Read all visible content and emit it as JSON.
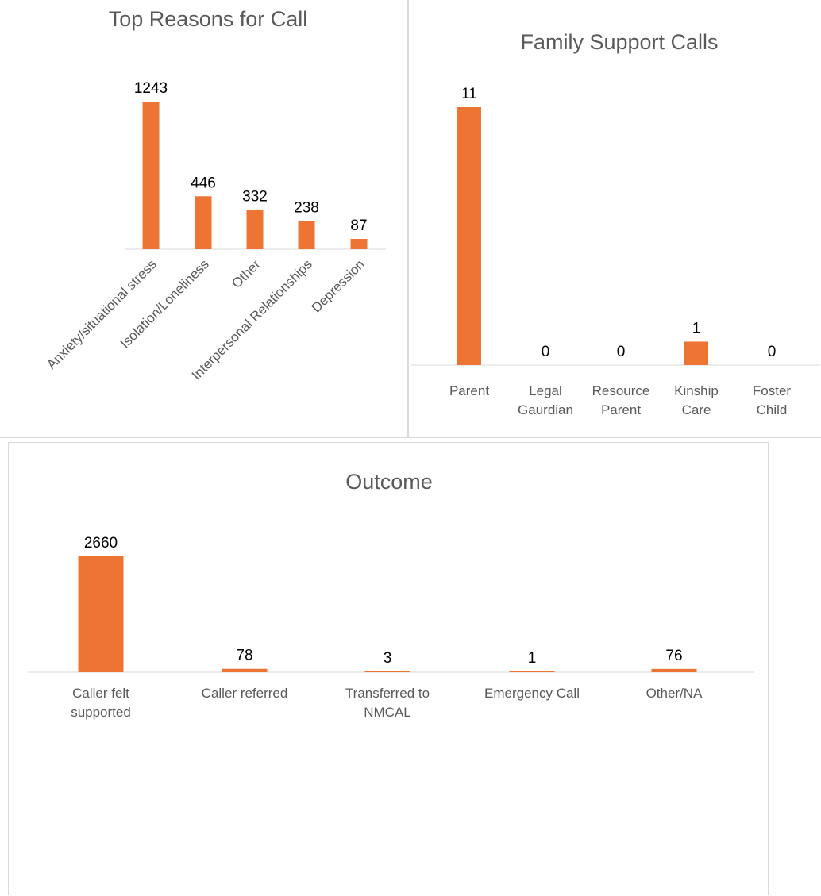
{
  "colors": {
    "bar": "#ED7433",
    "axis": "#d9d9d9",
    "title": "#595959",
    "label": "#595959",
    "value": "#000000"
  },
  "chart_data": [
    {
      "type": "bar",
      "title": "Top Reasons for Call",
      "categories": [
        "Anxiety/situational stress",
        "Isolation/Loneliness",
        "Other",
        "Interpersonal Relationships",
        "Depression"
      ],
      "values": [
        1243,
        446,
        332,
        238,
        87
      ],
      "data_labels": true,
      "ylim": [
        0,
        1243
      ],
      "grid": false,
      "legend": "none"
    },
    {
      "type": "bar",
      "title": "Family Support Calls",
      "categories": [
        [
          "Parent"
        ],
        [
          "Legal",
          "Gaurdian"
        ],
        [
          "Resource",
          "Parent"
        ],
        [
          "Kinship",
          "Care"
        ],
        [
          "Foster",
          "Child"
        ]
      ],
      "values": [
        11,
        0,
        0,
        1,
        0
      ],
      "data_labels": true,
      "ylim": [
        0,
        11
      ],
      "grid": false,
      "legend": "none"
    },
    {
      "type": "bar",
      "title": "Outcome",
      "categories": [
        [
          "Caller felt",
          "supported"
        ],
        [
          "Caller referred"
        ],
        [
          "Transferred to",
          "NMCAL"
        ],
        [
          "Emergency Call"
        ],
        [
          "Other/NA"
        ]
      ],
      "values": [
        2660,
        78,
        3,
        1,
        76
      ],
      "data_labels": true,
      "ylim": [
        0,
        2660
      ],
      "grid": false,
      "legend": "none"
    }
  ]
}
